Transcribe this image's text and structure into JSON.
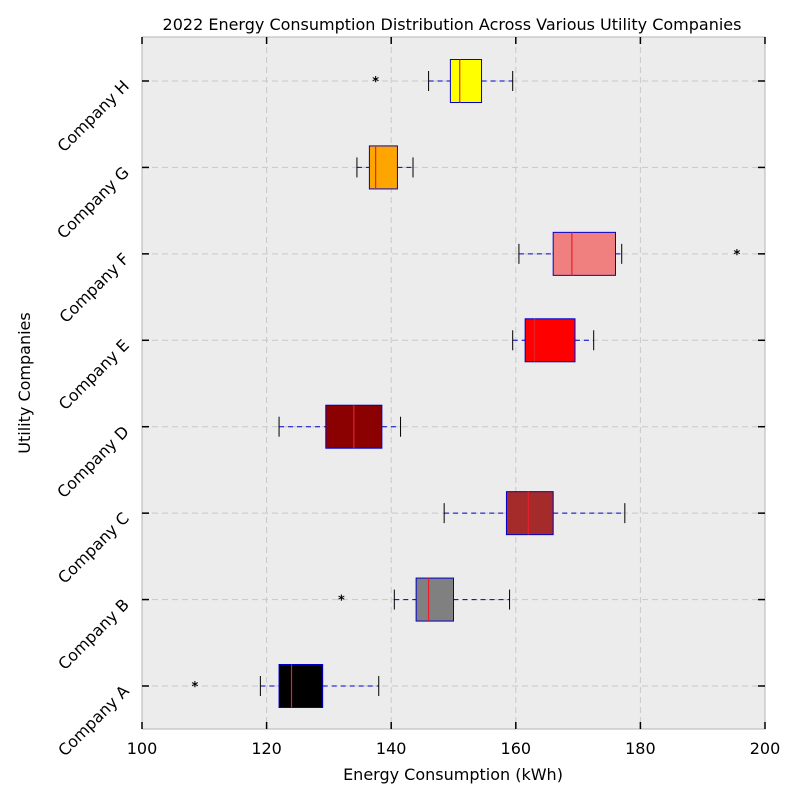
{
  "chart_data": {
    "type": "boxplot",
    "orientation": "horizontal",
    "title": "2022 Energy Consumption Distribution Across Various Utility Companies",
    "xlabel": "Energy Consumption (kWh)",
    "ylabel": "Utility Companies",
    "xlim": [
      100,
      200
    ],
    "xticks": [
      100,
      120,
      140,
      160,
      180,
      200
    ],
    "grid": true,
    "colors": {
      "background": "#ececec",
      "box_edge": "#0000cc",
      "median": "#e8202a",
      "whisker": "#0000cc",
      "cap": "#000000",
      "grid": "#c8c8c8"
    },
    "categories": [
      "Company A",
      "Company B",
      "Company C",
      "Company D",
      "Company E",
      "Company F",
      "Company G",
      "Company H"
    ],
    "boxes": [
      {
        "category": "Company A",
        "whislo": 119,
        "q1": 122,
        "med": 124,
        "q3": 129,
        "whishi": 138,
        "fliers": [
          108.5
        ],
        "color": "#000000"
      },
      {
        "category": "Company B",
        "whislo": 140.5,
        "q1": 144,
        "med": 146,
        "q3": 150,
        "whishi": 159,
        "fliers": [
          132
        ],
        "color": "#808080"
      },
      {
        "category": "Company C",
        "whislo": 148.5,
        "q1": 158.5,
        "med": 162,
        "q3": 166,
        "whishi": 177.5,
        "fliers": [],
        "color": "#a52a2a"
      },
      {
        "category": "Company D",
        "whislo": 122,
        "q1": 129.5,
        "med": 134,
        "q3": 138.5,
        "whishi": 141.5,
        "fliers": [],
        "color": "#8b0000"
      },
      {
        "category": "Company E",
        "whislo": 159.5,
        "q1": 161.5,
        "med": 163,
        "q3": 169.5,
        "whishi": 172.5,
        "fliers": [],
        "color": "#ff0000"
      },
      {
        "category": "Company F",
        "whislo": 160.5,
        "q1": 166,
        "med": 169,
        "q3": 176,
        "whishi": 177,
        "fliers": [
          195.5
        ],
        "color": "#f08080"
      },
      {
        "category": "Company G",
        "whislo": 134.5,
        "q1": 136.5,
        "med": 137.5,
        "q3": 141,
        "whishi": 143.5,
        "fliers": [],
        "color": "#ffa500"
      },
      {
        "category": "Company H",
        "whislo": 146,
        "q1": 149.5,
        "med": 151,
        "q3": 154.5,
        "whishi": 159.5,
        "fliers": [
          137.5
        ],
        "color": "#ffff00"
      }
    ]
  }
}
